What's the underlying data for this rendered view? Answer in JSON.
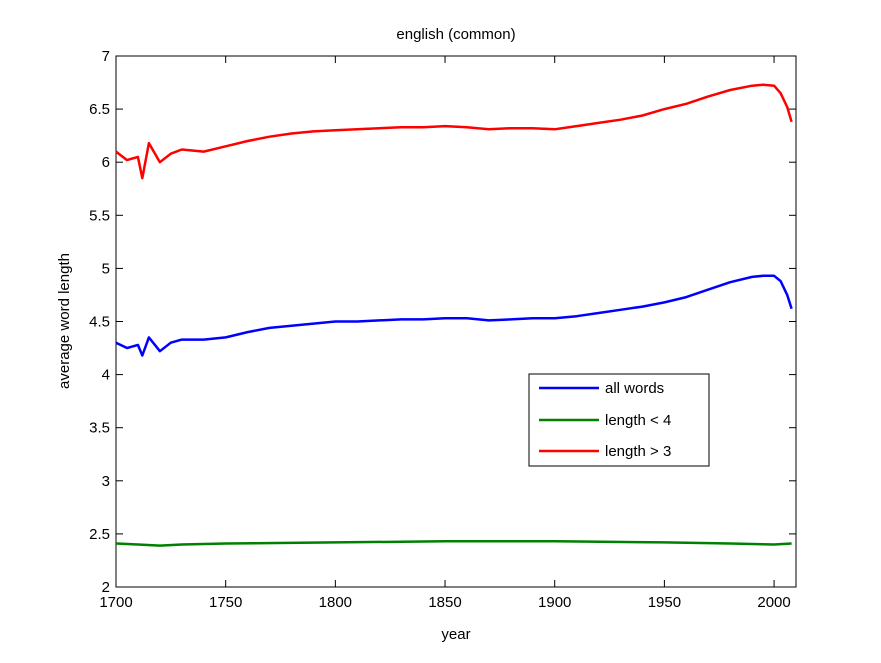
{
  "chart_data": {
    "type": "line",
    "title": "english (common)",
    "xlabel": "year",
    "ylabel": "average word length",
    "xlim": [
      1700,
      2010
    ],
    "ylim": [
      2,
      7
    ],
    "grid": false,
    "legend_position": "lower-right (inside axes)",
    "x_ticks": [
      "1700",
      "1750",
      "1800",
      "1850",
      "1900",
      "1950",
      "2000"
    ],
    "y_ticks": [
      "2",
      "2.5",
      "3",
      "3.5",
      "4",
      "4.5",
      "5",
      "5.5",
      "6",
      "6.5",
      "7"
    ],
    "x_tick_values": [
      1700,
      1750,
      1800,
      1850,
      1900,
      1950,
      2000
    ],
    "y_tick_values": [
      2,
      2.5,
      3,
      3.5,
      4,
      4.5,
      5,
      5.5,
      6,
      6.5,
      7
    ],
    "series": [
      {
        "name": "all words",
        "color": "#0000ff",
        "x": [
          1700,
          1705,
          1710,
          1712,
          1715,
          1720,
          1725,
          1730,
          1740,
          1750,
          1760,
          1770,
          1780,
          1790,
          1800,
          1810,
          1820,
          1830,
          1840,
          1850,
          1860,
          1870,
          1880,
          1890,
          1900,
          1910,
          1920,
          1930,
          1940,
          1950,
          1960,
          1970,
          1980,
          1990,
          1995,
          2000,
          2003,
          2006,
          2008
        ],
        "y": [
          4.3,
          4.25,
          4.28,
          4.18,
          4.35,
          4.22,
          4.3,
          4.33,
          4.33,
          4.35,
          4.4,
          4.44,
          4.46,
          4.48,
          4.5,
          4.5,
          4.51,
          4.52,
          4.52,
          4.53,
          4.53,
          4.51,
          4.52,
          4.53,
          4.53,
          4.55,
          4.58,
          4.61,
          4.64,
          4.68,
          4.73,
          4.8,
          4.87,
          4.92,
          4.93,
          4.93,
          4.88,
          4.75,
          4.62
        ]
      },
      {
        "name": "length < 4",
        "color": "#008000",
        "x": [
          1700,
          1710,
          1720,
          1730,
          1750,
          1800,
          1850,
          1900,
          1950,
          1980,
          2000,
          2008
        ],
        "y": [
          2.41,
          2.4,
          2.39,
          2.4,
          2.41,
          2.42,
          2.43,
          2.43,
          2.42,
          2.41,
          2.4,
          2.41
        ]
      },
      {
        "name": "length > 3",
        "color": "#ff0000",
        "x": [
          1700,
          1705,
          1710,
          1712,
          1715,
          1720,
          1725,
          1730,
          1740,
          1750,
          1760,
          1770,
          1780,
          1790,
          1800,
          1810,
          1820,
          1830,
          1840,
          1850,
          1860,
          1870,
          1880,
          1890,
          1900,
          1910,
          1920,
          1930,
          1940,
          1950,
          1960,
          1970,
          1980,
          1990,
          1995,
          2000,
          2003,
          2006,
          2008
        ],
        "y": [
          6.1,
          6.02,
          6.05,
          5.85,
          6.18,
          6.0,
          6.08,
          6.12,
          6.1,
          6.15,
          6.2,
          6.24,
          6.27,
          6.29,
          6.3,
          6.31,
          6.32,
          6.33,
          6.33,
          6.34,
          6.33,
          6.31,
          6.32,
          6.32,
          6.31,
          6.34,
          6.37,
          6.4,
          6.44,
          6.5,
          6.55,
          6.62,
          6.68,
          6.72,
          6.73,
          6.72,
          6.65,
          6.52,
          6.38
        ]
      }
    ]
  }
}
